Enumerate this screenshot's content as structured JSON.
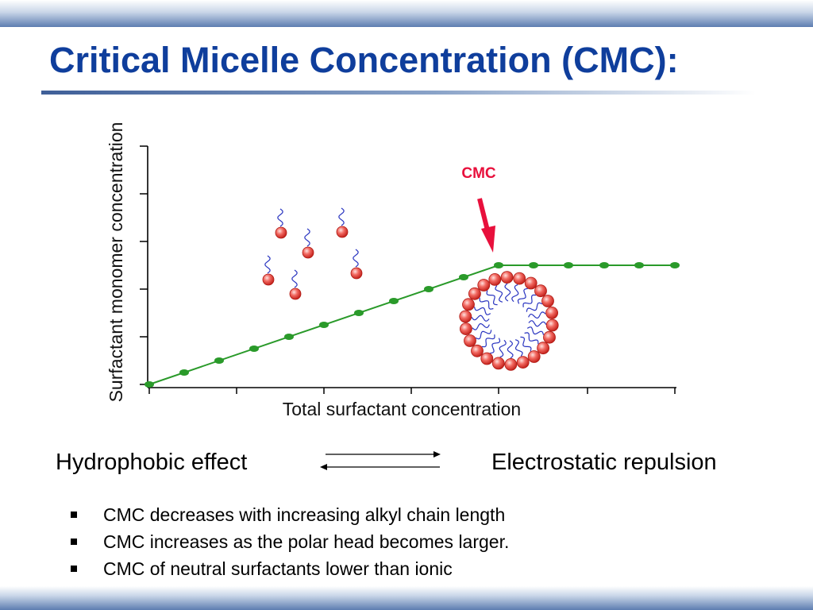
{
  "title": "Critical Micelle Concentration (CMC):",
  "diagram": {
    "x_axis_label": "Total surfactant concentration",
    "y_axis_label": "Surfactant monomer concentration",
    "cmc_label": "CMC",
    "line_color": "#2a9a2a",
    "arrow_color": "#e8103c",
    "head_color": "#e8403c",
    "tail_color": "#2a35c0"
  },
  "equilibrium": {
    "left": "Hydrophobic effect",
    "right": "Electrostatic repulsion",
    "icon": "double-arrow-equilibrium-icon"
  },
  "bullets": [
    "CMC decreases with increasing alkyl chain length",
    "CMC increases as the polar head becomes larger.",
    "CMC of neutral surfactants lower than ionic"
  ]
}
